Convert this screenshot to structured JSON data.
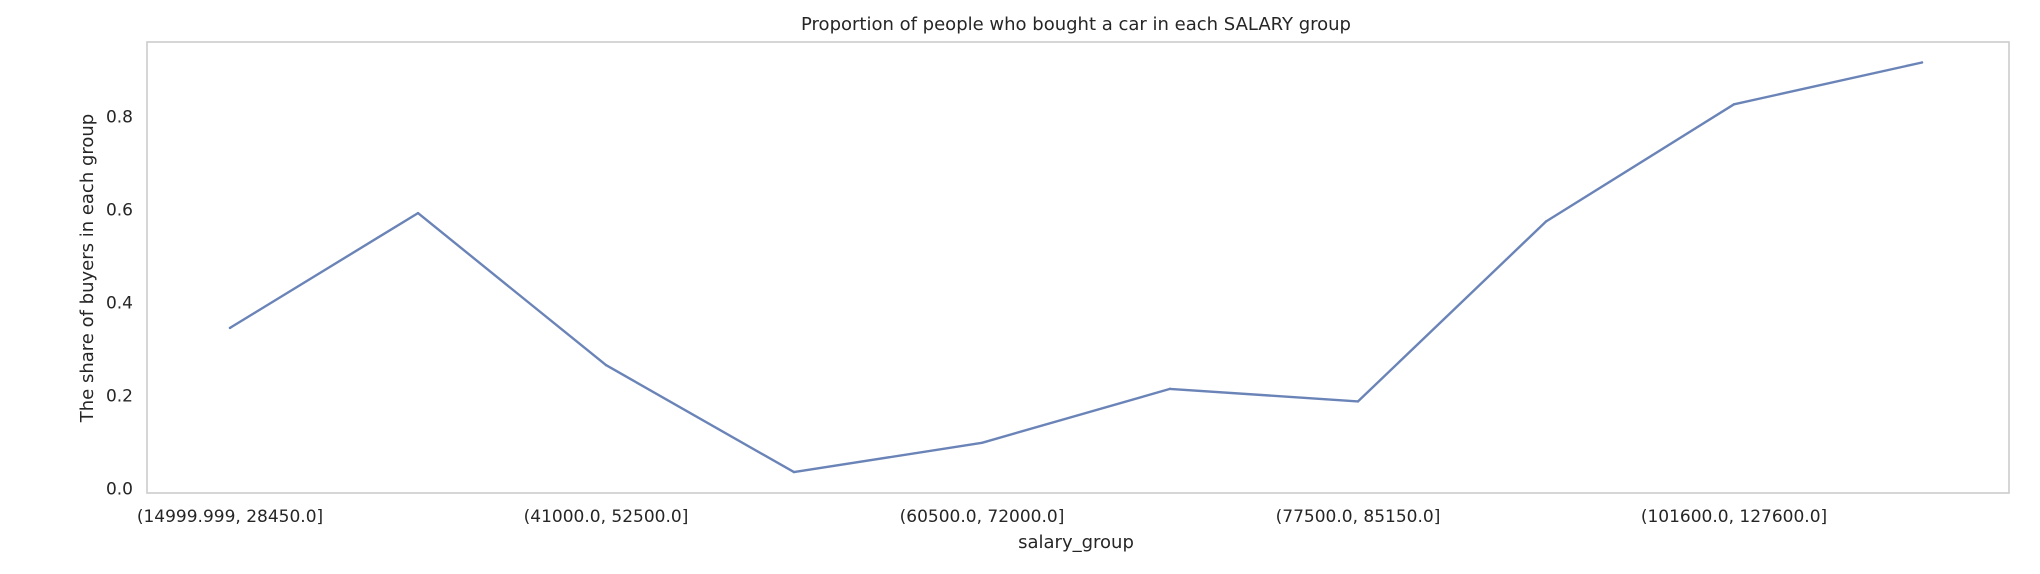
{
  "chart_data": {
    "type": "line",
    "title": "Proportion of people who bought a car in each SALARY group",
    "xlabel": "salary_group",
    "ylabel": "The share of buyers in each group",
    "categories": [
      "(14999.999, 28450.0]",
      "",
      "(41000.0, 52500.0]",
      "",
      "(60500.0, 72000.0]",
      "",
      "(77500.0, 85150.0]",
      "",
      "(101600.0, 127600.0]",
      ""
    ],
    "series": [
      {
        "values": [
          0.345,
          0.592,
          0.265,
          0.035,
          0.098,
          0.214,
          0.187,
          0.574,
          0.826,
          0.916
        ]
      }
    ],
    "ylim": [
      -0.01,
      0.96
    ],
    "yticks": [
      0.0,
      0.2,
      0.4,
      0.6,
      0.8
    ],
    "ytick_labels": [
      "0.0",
      "0.2",
      "0.4",
      "0.6",
      "0.8"
    ],
    "grid": false,
    "legend": "none",
    "colors": {
      "line": "#6b84b8",
      "frame": "#cccccc",
      "text": "#262626"
    }
  }
}
